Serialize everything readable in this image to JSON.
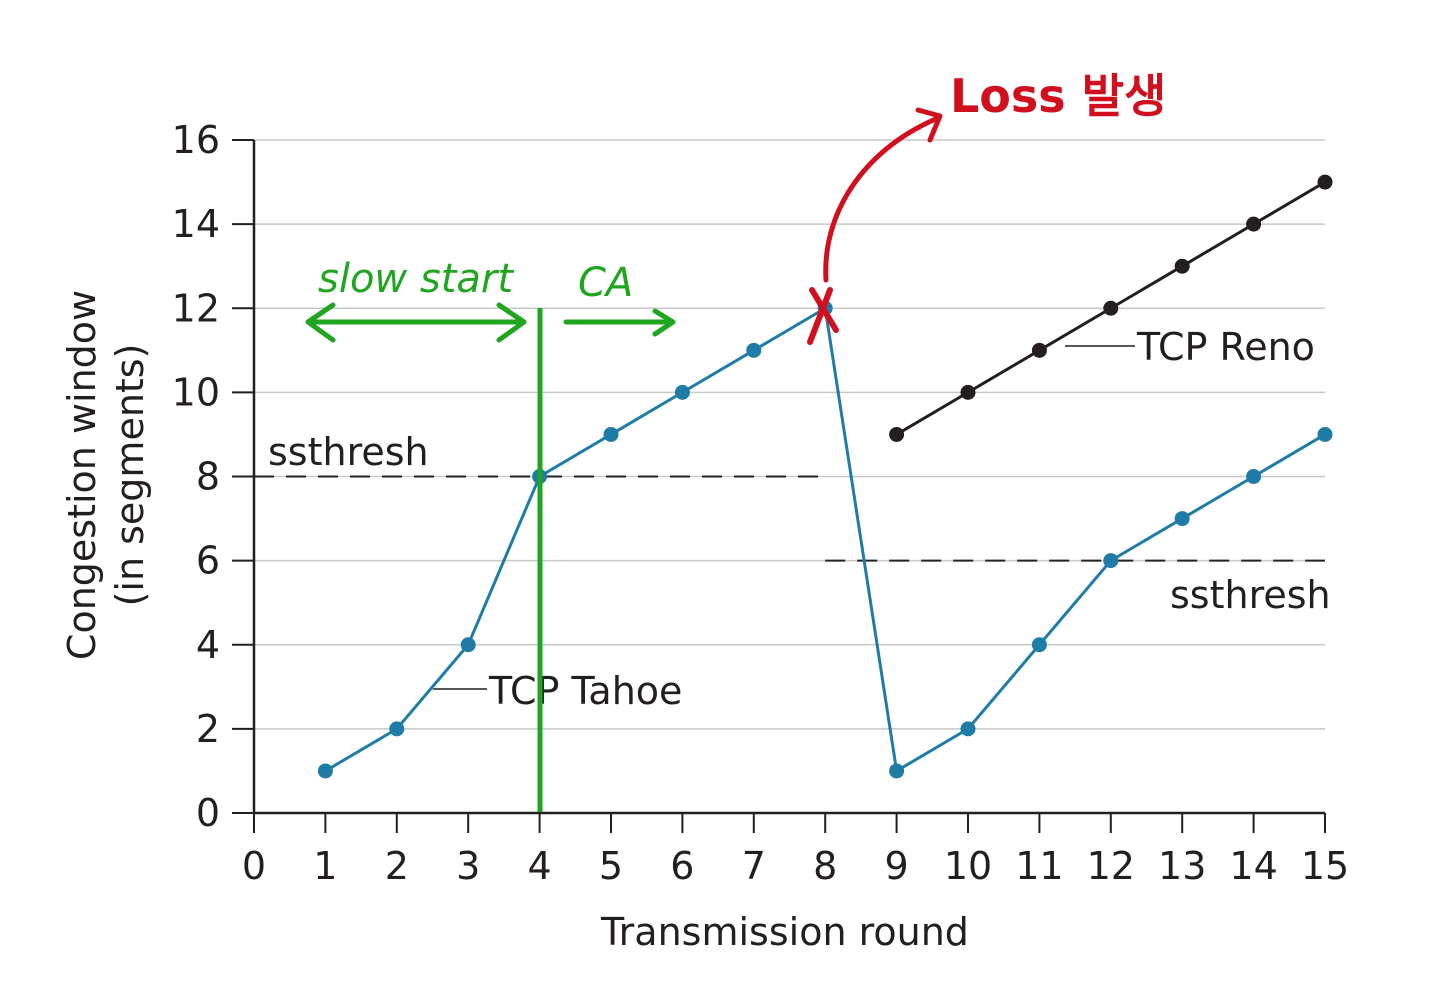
{
  "chart_data": {
    "type": "line",
    "xlabel": "Transmission round",
    "ylabel": "Congestion window\n(in segments)",
    "xlim": [
      0,
      15
    ],
    "ylim": [
      0,
      16
    ],
    "xticks": [
      0,
      1,
      2,
      3,
      4,
      5,
      6,
      7,
      8,
      9,
      10,
      11,
      12,
      13,
      14,
      15
    ],
    "yticks": [
      0,
      2,
      4,
      6,
      8,
      10,
      12,
      14,
      16
    ],
    "grid": "horizontal",
    "series": [
      {
        "name": "TCP Tahoe",
        "color": "#1f7ca6",
        "x": [
          1,
          2,
          3,
          4,
          5,
          6,
          7,
          8,
          9,
          10,
          11,
          12,
          13,
          14,
          15
        ],
        "y": [
          1,
          2,
          4,
          8,
          9,
          10,
          11,
          12,
          1,
          2,
          4,
          6,
          7,
          8,
          9
        ]
      },
      {
        "name": "TCP Reno",
        "color": "#231f20",
        "x": [
          9,
          10,
          11,
          12,
          13,
          14,
          15
        ],
        "y": [
          9,
          10,
          11,
          12,
          13,
          14,
          15
        ]
      }
    ],
    "thresholds": [
      {
        "label": "ssthresh",
        "y": 8,
        "x_range": [
          0,
          8
        ]
      },
      {
        "label": "ssthresh",
        "y": 6,
        "x_range": [
          8,
          15
        ]
      }
    ],
    "annotations": {
      "slow_start": "slow start",
      "ca": "CA",
      "loss": "Loss 발생"
    }
  }
}
